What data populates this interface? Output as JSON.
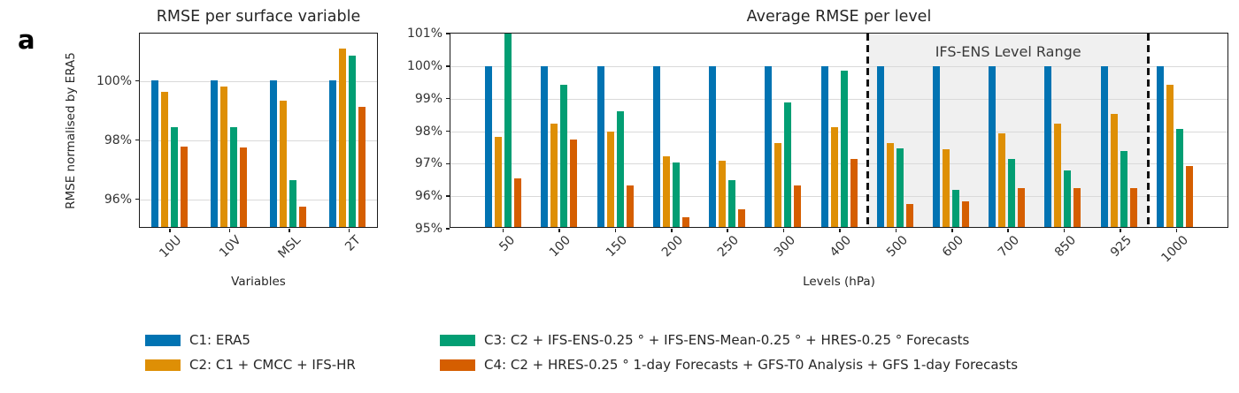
{
  "figure": {
    "panel_letter": "a"
  },
  "colors": {
    "c1_blue": "#0173b2",
    "c2_orange": "#de8f05",
    "c3_green": "#029e73",
    "c4_red": "#d55e00",
    "gridline": "#d9d9d9",
    "band_fill": "#f0f0f0",
    "dashed_line": "#111111",
    "spine": "#1a1a1a"
  },
  "chart_data": [
    {
      "type": "bar",
      "title": "RMSE per surface variable",
      "xlabel": "Variables",
      "ylabel": "RMSE normalised by ERA5",
      "ylim": [
        95,
        101.6
      ],
      "grid": true,
      "legend_position": "below-figure",
      "yticks": [
        {
          "value": 96,
          "label": "96%"
        },
        {
          "value": 98,
          "label": "98%"
        },
        {
          "value": 100,
          "label": "100%"
        }
      ],
      "categories": [
        "10U",
        "10V",
        "MSL",
        "2T"
      ],
      "series": [
        {
          "name": "C1",
          "color": "#0173b2",
          "values": [
            100,
            100,
            100,
            100
          ]
        },
        {
          "name": "C2",
          "color": "#de8f05",
          "values": [
            99.6,
            99.8,
            99.3,
            101.1
          ]
        },
        {
          "name": "C3",
          "color": "#029e73",
          "values": [
            98.4,
            98.4,
            96.6,
            100.85
          ]
        },
        {
          "name": "C4",
          "color": "#d55e00",
          "values": [
            97.75,
            97.7,
            95.7,
            99.1
          ]
        }
      ]
    },
    {
      "type": "bar",
      "title": "Average RMSE per level",
      "xlabel": "Levels (hPa)",
      "ylabel": "",
      "ylim": [
        95,
        101
      ],
      "grid": true,
      "legend_position": "below-figure",
      "yticks": [
        {
          "value": 95,
          "label": "95%"
        },
        {
          "value": 96,
          "label": "96%"
        },
        {
          "value": 97,
          "label": "97%"
        },
        {
          "value": 98,
          "label": "98%"
        },
        {
          "value": 99,
          "label": "99%"
        },
        {
          "value": 100,
          "label": "100%"
        },
        {
          "value": 101,
          "label": "101%"
        }
      ],
      "categories": [
        "50",
        "100",
        "150",
        "200",
        "250",
        "300",
        "400",
        "500",
        "600",
        "700",
        "850",
        "925",
        "1000"
      ],
      "series": [
        {
          "name": "C1",
          "color": "#0173b2",
          "values": [
            100,
            100,
            100,
            100,
            100,
            100,
            100,
            100,
            100,
            100,
            100,
            100,
            100
          ]
        },
        {
          "name": "C2",
          "color": "#de8f05",
          "values": [
            97.8,
            98.2,
            97.95,
            97.2,
            97.05,
            97.6,
            98.1,
            97.6,
            97.4,
            97.9,
            98.2,
            98.5,
            99.4
          ]
        },
        {
          "name": "C3",
          "color": "#029e73",
          "values": [
            101.5,
            99.4,
            98.6,
            97.0,
            96.45,
            98.85,
            99.85,
            97.45,
            96.15,
            97.1,
            96.75,
            97.35,
            98.05
          ]
        },
        {
          "name": "C4",
          "color": "#d55e00",
          "values": [
            96.5,
            97.7,
            96.3,
            95.3,
            95.55,
            96.3,
            97.1,
            95.7,
            95.8,
            96.2,
            96.2,
            96.2,
            96.9
          ]
        }
      ],
      "annotation": {
        "label": "IFS-ENS Level Range",
        "band_start_boundary": 7,
        "band_end_boundary": 12
      }
    }
  ],
  "legend": {
    "items": [
      {
        "name": "C1",
        "color": "#0173b2",
        "label": "C1: ERA5"
      },
      {
        "name": "C2",
        "color": "#de8f05",
        "label": "C2: C1 + CMCC + IFS-HR"
      },
      {
        "name": "C3",
        "color": "#029e73",
        "label": "C3: C2 + IFS-ENS-0.25 ° + IFS-ENS-Mean-0.25 ° + HRES-0.25 ° Forecasts"
      },
      {
        "name": "C4",
        "color": "#d55e00",
        "label": "C4: C2 + HRES-0.25 ° 1-day Forecasts + GFS-T0 Analysis + GFS 1-day Forecasts"
      }
    ]
  }
}
